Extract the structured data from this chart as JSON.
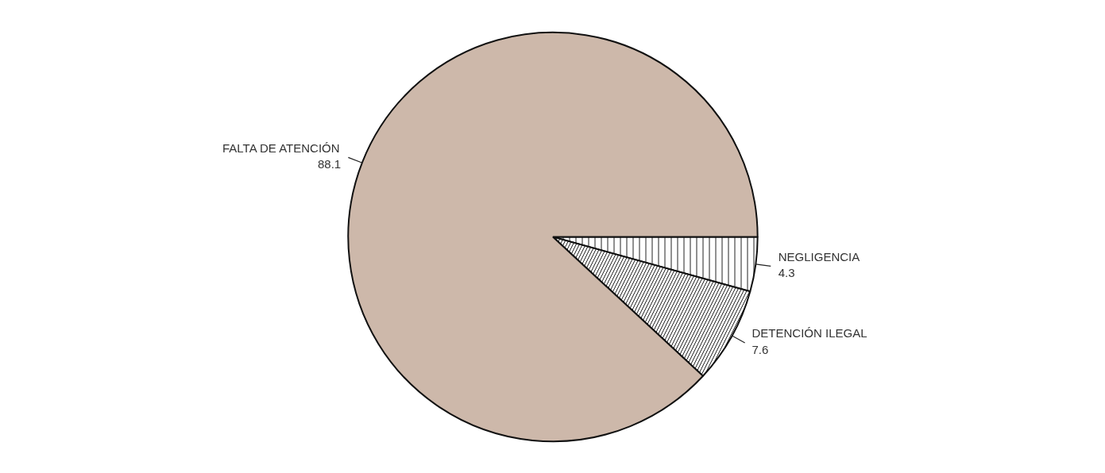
{
  "chart_data": {
    "type": "pie",
    "categories": [
      "NEGLIGENCIA",
      "DETENCIÓN ILEGAL",
      "FALTA DE ATENCIÓN"
    ],
    "values": [
      4.3,
      7.6,
      88.1
    ],
    "colors": [
      "#ffffff",
      "#ffffff",
      "#cdb8aa"
    ],
    "data_labels": true
  }
}
